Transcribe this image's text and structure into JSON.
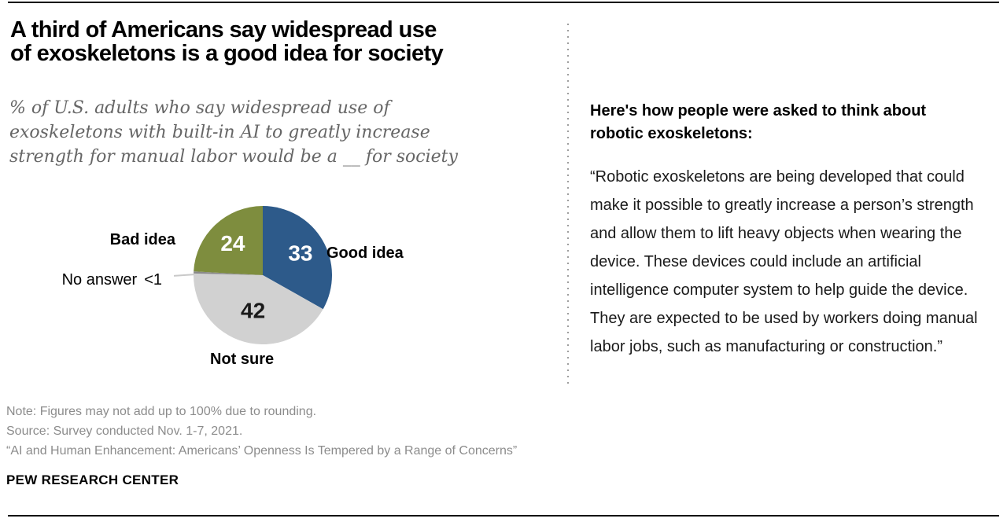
{
  "header": {
    "title_lines": [
      "A third of Americans say widespread use",
      "of exoskeletons is a good idea for society"
    ],
    "subtitle_lines": [
      "% of U.S. adults who say widespread use of",
      "exoskeletons with built-in AI to greatly increase",
      "strength for manual labor would be a __ for society"
    ]
  },
  "chart_data": {
    "type": "pie",
    "title": "A third of Americans say widespread use of exoskeletons is a good idea for society",
    "units": "% of U.S. adults",
    "start_angle_deg": 0,
    "direction": "clockwise",
    "legend_position": "none",
    "slices": [
      {
        "label": "Good idea",
        "value": 33,
        "display": "33",
        "color": "#2D5A8A",
        "text_color": "#FFFFFF",
        "display_inside": true,
        "label_r": 0.63
      },
      {
        "label": "Not sure",
        "value": 42,
        "display": "42",
        "color": "#D1D1D1",
        "text_color": "#1A1A1A",
        "display_inside": true,
        "label_r": 0.53
      },
      {
        "label": "No answer",
        "value": 0.5,
        "display": "<1",
        "color": "#8A8A8A",
        "text_color": "#000000",
        "display_inside": false
      },
      {
        "label": "Bad idea",
        "value": 24,
        "display": "24",
        "color": "#7E8D3E",
        "text_color": "#FFFFFF",
        "display_inside": true,
        "label_r": 0.63
      }
    ]
  },
  "right_panel": {
    "heading": "Here's how people were asked to think about robotic exoskeletons:",
    "quote": "“Robotic exoskeletons are being developed that could make it possible to greatly increase a person’s strength and allow them to lift heavy objects when wearing the device. These devices could include an artificial intelligence computer system to help guide the device. They are expected to be used by workers doing manual labor jobs, such as manufacturing or construction.”"
  },
  "footer": {
    "note": "Note: Figures may not add up to 100% due to rounding.",
    "source": "Source: Survey conducted Nov. 1-7, 2021.",
    "report_title": "“AI and Human Enhancement: Americans’ Openness Is Tempered by a Range of Concerns”",
    "brand": "PEW RESEARCH CENTER"
  },
  "colors": {
    "good_idea_blue": "#2D5A8A",
    "not_sure_gray": "#D1D1D1",
    "no_answer_dark_gray": "#8A8A8A",
    "bad_idea_olive": "#7E8D3E",
    "subtitle_gray": "#666666",
    "footer_gray": "#8C8C8C"
  }
}
